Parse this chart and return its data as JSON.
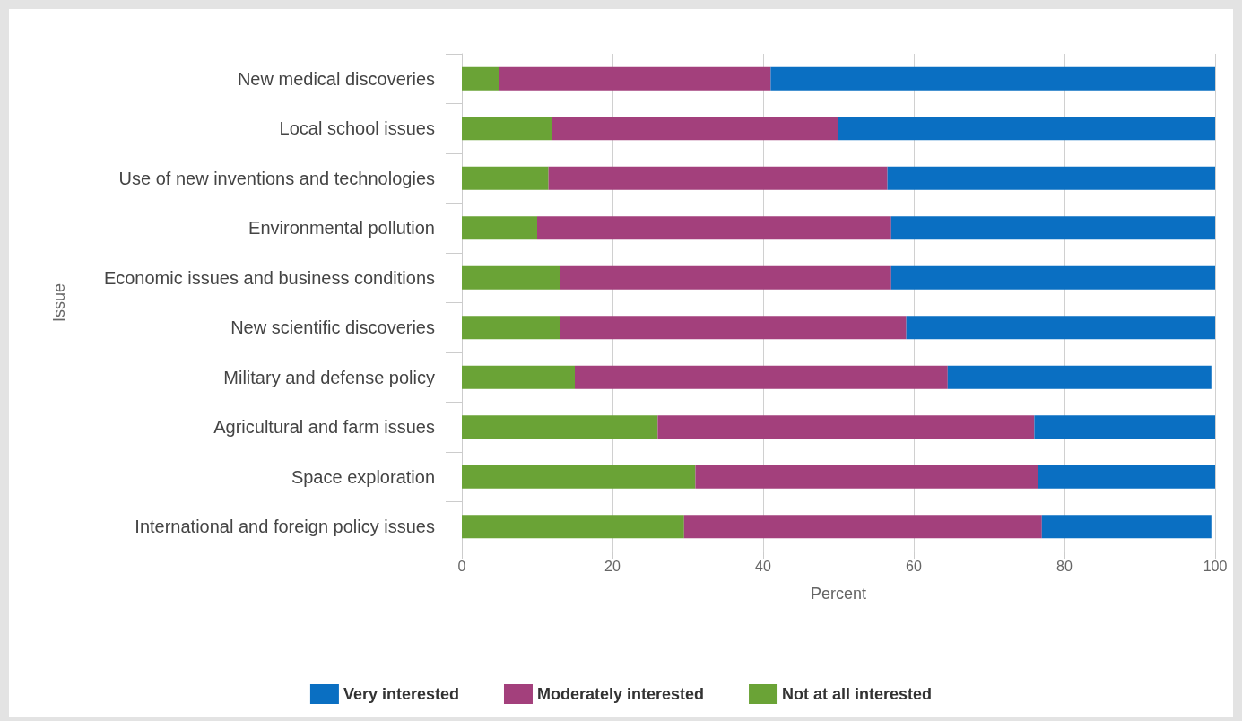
{
  "chart_data": {
    "type": "bar",
    "orientation": "horizontal",
    "stacked": true,
    "xlabel": "Percent",
    "ylabel": "Issue",
    "categories": [
      "New medical discoveries",
      "Local school issues",
      "Use of new inventions and technologies",
      "Environmental pollution",
      "Economic issues and business conditions",
      "New scientific discoveries",
      "Military and defense policy",
      "Agricultural and farm issues",
      "Space exploration",
      "International and foreign policy issues"
    ],
    "series": [
      {
        "name": "Not at all interested",
        "color": "#6aa336",
        "values": [
          5,
          12,
          11.5,
          10,
          13,
          13,
          15,
          26,
          31,
          29.5
        ]
      },
      {
        "name": "Moderately interested",
        "color": "#a3407c",
        "values": [
          36,
          38,
          45,
          47,
          44,
          46,
          49.5,
          50,
          45.5,
          47.5
        ]
      },
      {
        "name": "Very interested",
        "color": "#0a6fc2",
        "values": [
          59,
          50,
          43.5,
          43,
          43,
          41,
          35,
          24,
          23.5,
          22.5
        ]
      }
    ],
    "xlim": [
      0,
      100
    ],
    "xticks": [
      0,
      20,
      40,
      60,
      80,
      100
    ],
    "grid": "x",
    "legend": "bottom"
  }
}
